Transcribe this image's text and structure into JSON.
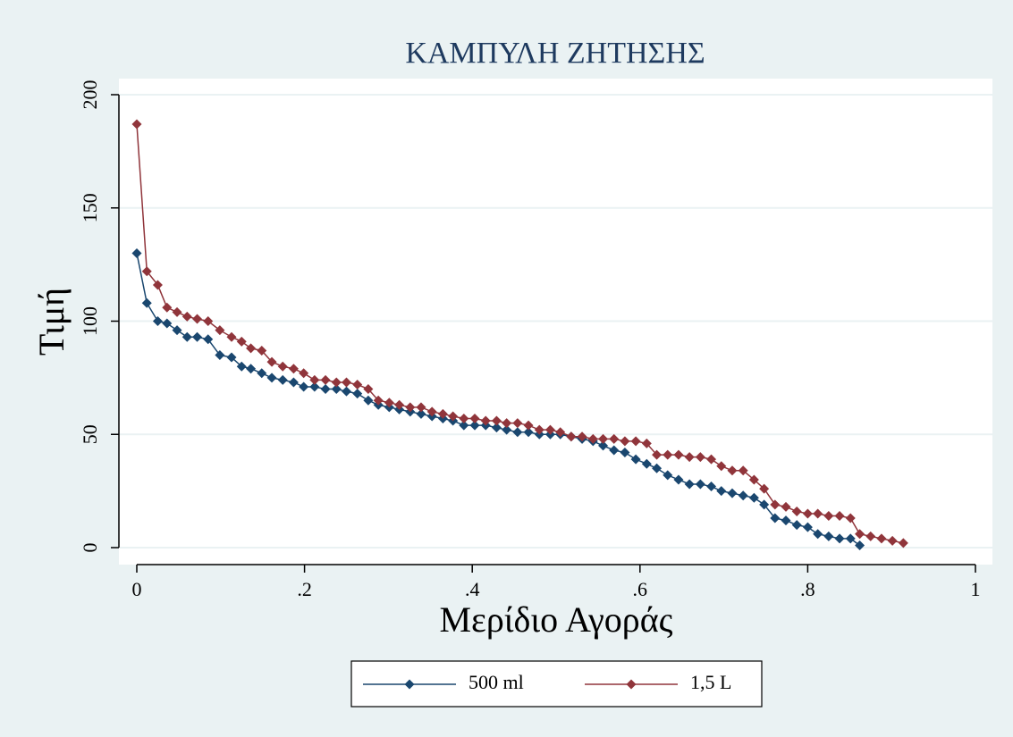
{
  "chart_data": {
    "type": "line",
    "title": "ΚΑΜΠΥΛΗ ΖΗΤΗΣΗΣ",
    "x_label": "Μερίδιο Αγοράς",
    "y_label": "Τιμή",
    "xlim": [
      0,
      1
    ],
    "ylim": [
      0,
      200
    ],
    "xticks": [
      0,
      {
        "value": 0.2,
        "label": ".2"
      },
      {
        "value": 0.4,
        "label": ".4"
      },
      {
        "value": 0.6,
        "label": ".6"
      },
      {
        "value": 0.8,
        "label": ".8"
      },
      1
    ],
    "yticks": [
      0,
      50,
      100,
      150,
      200
    ],
    "grid": true,
    "legend": "bottom",
    "series": [
      {
        "name": "500 ml",
        "color": "#1a476f",
        "x": [
          0,
          0.012,
          0.025,
          0.036,
          0.048,
          0.06,
          0.072,
          0.085,
          0.099,
          0.113,
          0.125,
          0.136,
          0.149,
          0.161,
          0.174,
          0.187,
          0.199,
          0.212,
          0.225,
          0.238,
          0.25,
          0.263,
          0.276,
          0.288,
          0.301,
          0.313,
          0.326,
          0.339,
          0.352,
          0.365,
          0.377,
          0.39,
          0.403,
          0.416,
          0.429,
          0.441,
          0.454,
          0.467,
          0.48,
          0.493,
          0.505,
          0.518,
          0.531,
          0.544,
          0.556,
          0.569,
          0.582,
          0.595,
          0.608,
          0.62,
          0.633,
          0.646,
          0.659,
          0.672,
          0.685,
          0.697,
          0.71,
          0.723,
          0.736,
          0.748,
          0.761,
          0.774,
          0.787,
          0.8,
          0.812,
          0.825,
          0.838,
          0.851,
          0.862
        ],
        "values": [
          130,
          108,
          100,
          99,
          96,
          93,
          93,
          92,
          85,
          84,
          80,
          79,
          77,
          75,
          74,
          73,
          71,
          71,
          70,
          70,
          69,
          68,
          65,
          63,
          62,
          61,
          60,
          59,
          58,
          57,
          56,
          54,
          54,
          54,
          53,
          52,
          51,
          51,
          50,
          50,
          50,
          49,
          48,
          47,
          45,
          43,
          42,
          39,
          37,
          35,
          32,
          30,
          28,
          28,
          27,
          25,
          24,
          23,
          22,
          19,
          13,
          12,
          10,
          9,
          6,
          5,
          4,
          4,
          1
        ]
      },
      {
        "name": "1,5 L",
        "color": "#90353b",
        "x": [
          0,
          0.012,
          0.025,
          0.036,
          0.048,
          0.06,
          0.072,
          0.085,
          0.099,
          0.113,
          0.125,
          0.136,
          0.149,
          0.161,
          0.174,
          0.187,
          0.199,
          0.212,
          0.225,
          0.238,
          0.25,
          0.263,
          0.276,
          0.288,
          0.301,
          0.313,
          0.326,
          0.339,
          0.352,
          0.365,
          0.377,
          0.39,
          0.403,
          0.416,
          0.429,
          0.441,
          0.454,
          0.467,
          0.48,
          0.493,
          0.505,
          0.518,
          0.531,
          0.544,
          0.556,
          0.569,
          0.582,
          0.595,
          0.608,
          0.62,
          0.633,
          0.646,
          0.659,
          0.672,
          0.685,
          0.697,
          0.71,
          0.723,
          0.736,
          0.748,
          0.761,
          0.774,
          0.787,
          0.8,
          0.812,
          0.825,
          0.838,
          0.851,
          0.862,
          0.875,
          0.888,
          0.901,
          0.914
        ],
        "values": [
          187,
          122,
          116,
          106,
          104,
          102,
          101,
          100,
          96,
          93,
          91,
          88,
          87,
          82,
          80,
          79,
          77,
          74,
          74,
          73,
          73,
          72,
          70,
          65,
          64,
          63,
          62,
          62,
          60,
          59,
          58,
          57,
          57,
          56,
          56,
          55,
          55,
          54,
          52,
          52,
          51,
          49,
          49,
          48,
          48,
          48,
          47,
          47,
          46,
          41,
          41,
          41,
          40,
          40,
          39,
          36,
          34,
          34,
          30,
          26,
          19,
          18,
          16,
          15,
          15,
          14,
          14,
          13,
          6,
          5,
          4,
          3,
          2
        ]
      }
    ]
  }
}
